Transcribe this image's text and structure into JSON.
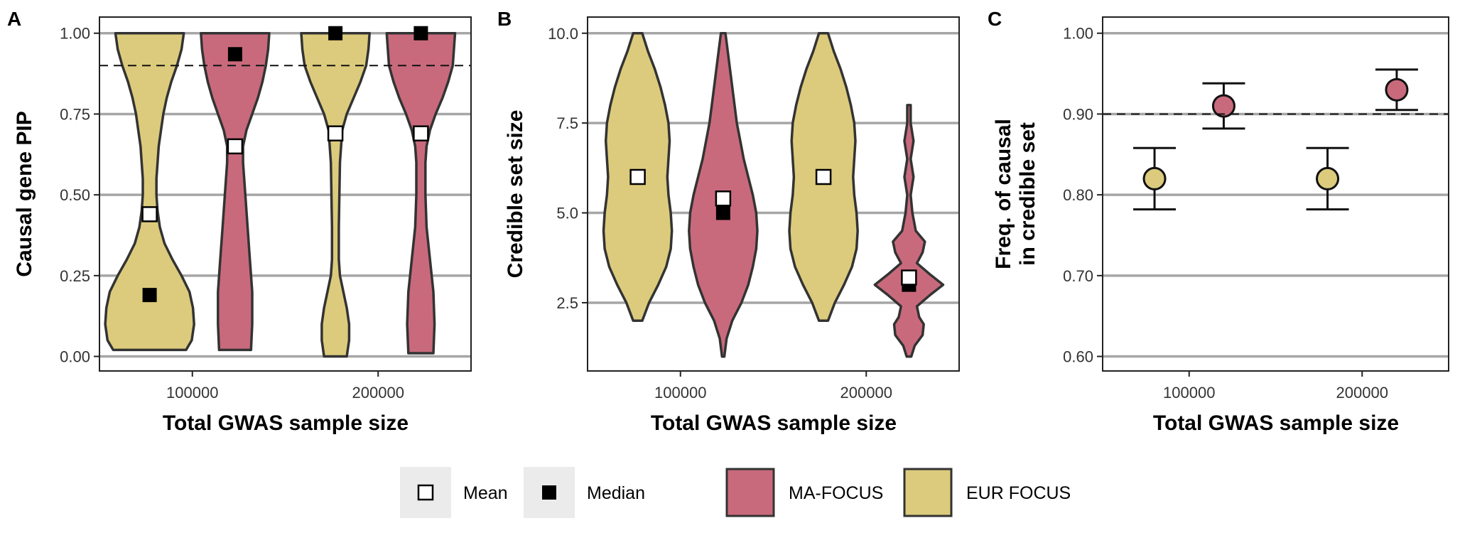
{
  "colors": {
    "ma_focus": "#c96a7c",
    "eur_focus": "#dccb7c",
    "grid": "#a6a6a6",
    "outline": "#333333",
    "legend_key_bg": "#ebebeb"
  },
  "legend": {
    "mean": "Mean",
    "median": "Median",
    "ma_focus": "MA-FOCUS",
    "eur_focus": "EUR FOCUS"
  },
  "chart_data": [
    {
      "panel": "A",
      "type": "violin",
      "xlabel": "Total GWAS sample size",
      "ylabel": "Causal gene PIP",
      "x_ticks": [
        "100000",
        "200000"
      ],
      "ylim": [
        -0.045,
        1.05
      ],
      "y_ticks": [
        0.0,
        0.25,
        0.5,
        0.75,
        1.0
      ],
      "y_tick_labels": [
        "0.00",
        "0.25",
        "0.50",
        "0.75",
        "1.00"
      ],
      "reference_line": 0.9,
      "groups": [
        {
          "x": "100000",
          "series": "EUR FOCUS",
          "mean": 0.44,
          "median": 0.19,
          "profile": [
            [
              0.02,
              0.32
            ],
            [
              0.05,
              0.37
            ],
            [
              0.1,
              0.39
            ],
            [
              0.15,
              0.38
            ],
            [
              0.2,
              0.35
            ],
            [
              0.25,
              0.28
            ],
            [
              0.3,
              0.2
            ],
            [
              0.35,
              0.13
            ],
            [
              0.4,
              0.09
            ],
            [
              0.45,
              0.07
            ],
            [
              0.5,
              0.06
            ],
            [
              0.55,
              0.06
            ],
            [
              0.6,
              0.07
            ],
            [
              0.65,
              0.08
            ],
            [
              0.7,
              0.1
            ],
            [
              0.75,
              0.12
            ],
            [
              0.8,
              0.15
            ],
            [
              0.85,
              0.19
            ],
            [
              0.9,
              0.24
            ],
            [
              0.95,
              0.28
            ],
            [
              1.0,
              0.3
            ]
          ]
        },
        {
          "x": "100000",
          "series": "MA-FOCUS",
          "mean": 0.65,
          "median": 0.935,
          "profile": [
            [
              0.02,
              0.14
            ],
            [
              0.1,
              0.15
            ],
            [
              0.2,
              0.15
            ],
            [
              0.3,
              0.13
            ],
            [
              0.4,
              0.11
            ],
            [
              0.5,
              0.09
            ],
            [
              0.6,
              0.07
            ],
            [
              0.65,
              0.07
            ],
            [
              0.7,
              0.1
            ],
            [
              0.75,
              0.15
            ],
            [
              0.8,
              0.2
            ],
            [
              0.85,
              0.24
            ],
            [
              0.9,
              0.27
            ],
            [
              0.95,
              0.29
            ],
            [
              1.0,
              0.3
            ]
          ]
        },
        {
          "x": "200000",
          "series": "EUR FOCUS",
          "mean": 0.69,
          "median": 1.0,
          "profile": [
            [
              0.0,
              0.1
            ],
            [
              0.05,
              0.12
            ],
            [
              0.1,
              0.12
            ],
            [
              0.15,
              0.1
            ],
            [
              0.2,
              0.07
            ],
            [
              0.25,
              0.04
            ],
            [
              0.3,
              0.03
            ],
            [
              0.4,
              0.03
            ],
            [
              0.5,
              0.035
            ],
            [
              0.6,
              0.04
            ],
            [
              0.7,
              0.06
            ],
            [
              0.75,
              0.1
            ],
            [
              0.8,
              0.16
            ],
            [
              0.85,
              0.22
            ],
            [
              0.9,
              0.27
            ],
            [
              0.95,
              0.29
            ],
            [
              1.0,
              0.3
            ]
          ]
        },
        {
          "x": "200000",
          "series": "MA-FOCUS",
          "mean": 0.69,
          "median": 1.0,
          "profile": [
            [
              0.01,
              0.11
            ],
            [
              0.1,
              0.12
            ],
            [
              0.2,
              0.11
            ],
            [
              0.3,
              0.08
            ],
            [
              0.4,
              0.05
            ],
            [
              0.5,
              0.04
            ],
            [
              0.6,
              0.04
            ],
            [
              0.65,
              0.05
            ],
            [
              0.7,
              0.08
            ],
            [
              0.75,
              0.13
            ],
            [
              0.8,
              0.19
            ],
            [
              0.85,
              0.24
            ],
            [
              0.9,
              0.28
            ],
            [
              0.95,
              0.29
            ],
            [
              1.0,
              0.3
            ]
          ]
        }
      ]
    },
    {
      "panel": "B",
      "type": "violin",
      "xlabel": "Total GWAS sample size",
      "ylabel": "Credible set size",
      "x_ticks": [
        "100000",
        "200000"
      ],
      "ylim": [
        0.6,
        10.45
      ],
      "y_ticks": [
        2.5,
        5.0,
        7.5,
        10.0
      ],
      "y_tick_labels": [
        "2.5",
        "5.0",
        "7.5",
        "10.0"
      ],
      "groups": [
        {
          "x": "100000",
          "series": "EUR FOCUS",
          "mean": 6.0,
          "median": 6.0,
          "profile": [
            [
              2.0,
              0.04
            ],
            [
              2.5,
              0.1
            ],
            [
              3.0,
              0.18
            ],
            [
              3.5,
              0.25
            ],
            [
              4.0,
              0.29
            ],
            [
              4.5,
              0.3
            ],
            [
              5.0,
              0.29
            ],
            [
              5.5,
              0.27
            ],
            [
              6.0,
              0.26
            ],
            [
              6.5,
              0.27
            ],
            [
              7.0,
              0.28
            ],
            [
              7.5,
              0.27
            ],
            [
              8.0,
              0.24
            ],
            [
              8.5,
              0.2
            ],
            [
              9.0,
              0.15
            ],
            [
              9.5,
              0.09
            ],
            [
              10.0,
              0.04
            ]
          ]
        },
        {
          "x": "100000",
          "series": "MA-FOCUS",
          "mean": 5.4,
          "median": 5.0,
          "profile": [
            [
              1.0,
              0.01
            ],
            [
              1.5,
              0.03
            ],
            [
              2.0,
              0.08
            ],
            [
              2.5,
              0.16
            ],
            [
              3.0,
              0.22
            ],
            [
              3.5,
              0.26
            ],
            [
              4.0,
              0.29
            ],
            [
              4.5,
              0.3
            ],
            [
              5.0,
              0.29
            ],
            [
              5.5,
              0.26
            ],
            [
              6.0,
              0.22
            ],
            [
              6.5,
              0.18
            ],
            [
              7.0,
              0.15
            ],
            [
              7.5,
              0.12
            ],
            [
              8.0,
              0.1
            ],
            [
              8.5,
              0.08
            ],
            [
              9.0,
              0.06
            ],
            [
              9.5,
              0.04
            ],
            [
              10.0,
              0.02
            ]
          ]
        },
        {
          "x": "200000",
          "series": "EUR FOCUS",
          "mean": 6.0,
          "median": 6.0,
          "profile": [
            [
              2.0,
              0.04
            ],
            [
              2.5,
              0.1
            ],
            [
              3.0,
              0.18
            ],
            [
              3.5,
              0.25
            ],
            [
              4.0,
              0.29
            ],
            [
              4.5,
              0.3
            ],
            [
              5.0,
              0.29
            ],
            [
              5.5,
              0.27
            ],
            [
              6.0,
              0.26
            ],
            [
              6.5,
              0.27
            ],
            [
              7.0,
              0.28
            ],
            [
              7.5,
              0.27
            ],
            [
              8.0,
              0.24
            ],
            [
              8.5,
              0.2
            ],
            [
              9.0,
              0.15
            ],
            [
              9.5,
              0.09
            ],
            [
              10.0,
              0.04
            ]
          ]
        },
        {
          "x": "200000",
          "series": "MA-FOCUS",
          "mean": 3.2,
          "median": 3.0,
          "profile": [
            [
              1.0,
              0.02
            ],
            [
              1.3,
              0.05
            ],
            [
              1.6,
              0.12
            ],
            [
              1.9,
              0.13
            ],
            [
              2.1,
              0.09
            ],
            [
              2.4,
              0.07
            ],
            [
              2.7,
              0.18
            ],
            [
              3.0,
              0.3
            ],
            [
              3.3,
              0.18
            ],
            [
              3.6,
              0.07
            ],
            [
              3.9,
              0.12
            ],
            [
              4.2,
              0.14
            ],
            [
              4.5,
              0.06
            ],
            [
              5.0,
              0.03
            ],
            [
              5.5,
              0.015
            ],
            [
              6.0,
              0.04
            ],
            [
              6.5,
              0.015
            ],
            [
              7.0,
              0.04
            ],
            [
              7.5,
              0.015
            ],
            [
              8.0,
              0.015
            ]
          ]
        }
      ]
    },
    {
      "panel": "C",
      "type": "errorbar",
      "xlabel": "Total GWAS sample size",
      "ylabel": [
        "Freq. of causal",
        "in credible set"
      ],
      "x_ticks": [
        "100000",
        "200000"
      ],
      "ylim": [
        0.582,
        1.02
      ],
      "y_ticks": [
        0.6,
        0.7,
        0.8,
        0.9,
        1.0
      ],
      "y_tick_labels": [
        "0.60",
        "0.70",
        "0.80",
        "0.90",
        "1.00"
      ],
      "reference_line": 0.9,
      "points": [
        {
          "x": "100000",
          "series": "EUR FOCUS",
          "value": 0.82,
          "low": 0.782,
          "high": 0.858
        },
        {
          "x": "100000",
          "series": "MA-FOCUS",
          "value": 0.91,
          "low": 0.882,
          "high": 0.938
        },
        {
          "x": "200000",
          "series": "EUR FOCUS",
          "value": 0.82,
          "low": 0.782,
          "high": 0.858
        },
        {
          "x": "200000",
          "series": "MA-FOCUS",
          "value": 0.93,
          "low": 0.905,
          "high": 0.955
        }
      ]
    }
  ]
}
